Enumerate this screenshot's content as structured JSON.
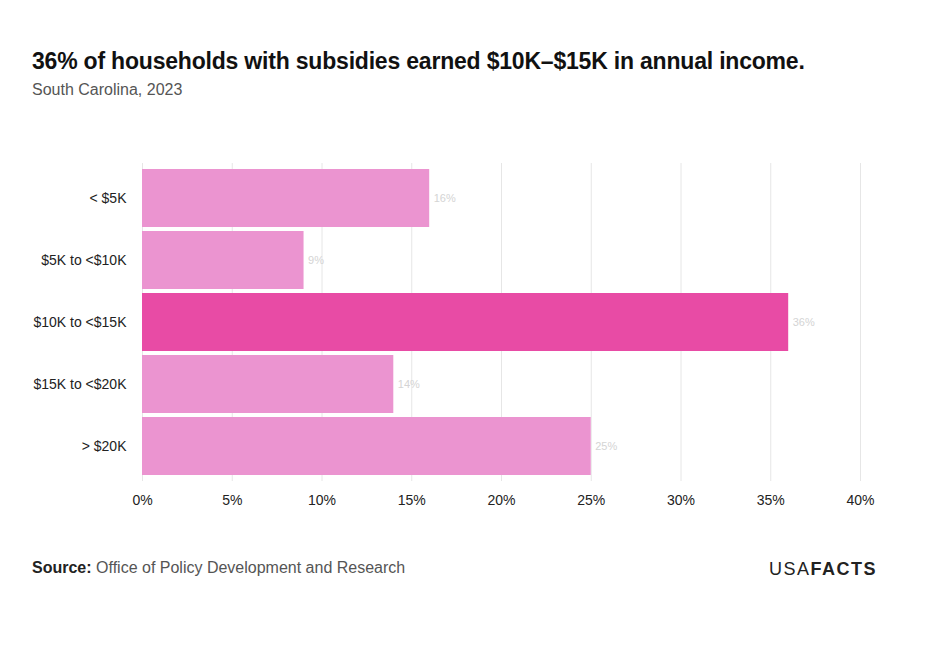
{
  "chart_data": {
    "type": "bar",
    "orientation": "horizontal",
    "title": "36% of households with subsidies earned $10K–$15K in annual income.",
    "subtitle": "South Carolina, 2023",
    "caption_label": "Source:",
    "caption": "Office of Policy Development and Research",
    "brand": [
      "USA",
      "FACTS"
    ],
    "categories": [
      "< $5K",
      "$5K to <$10K",
      "$10K to <$15K",
      "$15K to <$20K",
      "> $20K"
    ],
    "values": [
      16,
      9,
      36,
      14,
      25
    ],
    "value_labels": [
      "16%",
      "9%",
      "36%",
      "14%",
      "25%"
    ],
    "colors": [
      "#eb94d0",
      "#eb94d0",
      "#e84ba5",
      "#eb94d0",
      "#eb94d0"
    ],
    "xlim": [
      0,
      40
    ],
    "xticks": [
      {
        "value": 0,
        "label": "0%"
      },
      {
        "value": 5,
        "label": "5%"
      },
      {
        "value": 10,
        "label": "10%"
      },
      {
        "value": 15,
        "label": "15%"
      },
      {
        "value": 20,
        "label": "20%"
      },
      {
        "value": 25,
        "label": "25%"
      },
      {
        "value": 30,
        "label": "30%"
      },
      {
        "value": 35,
        "label": "35%"
      },
      {
        "value": 40,
        "label": "40%"
      }
    ],
    "grid": true,
    "data_labels": true
  }
}
